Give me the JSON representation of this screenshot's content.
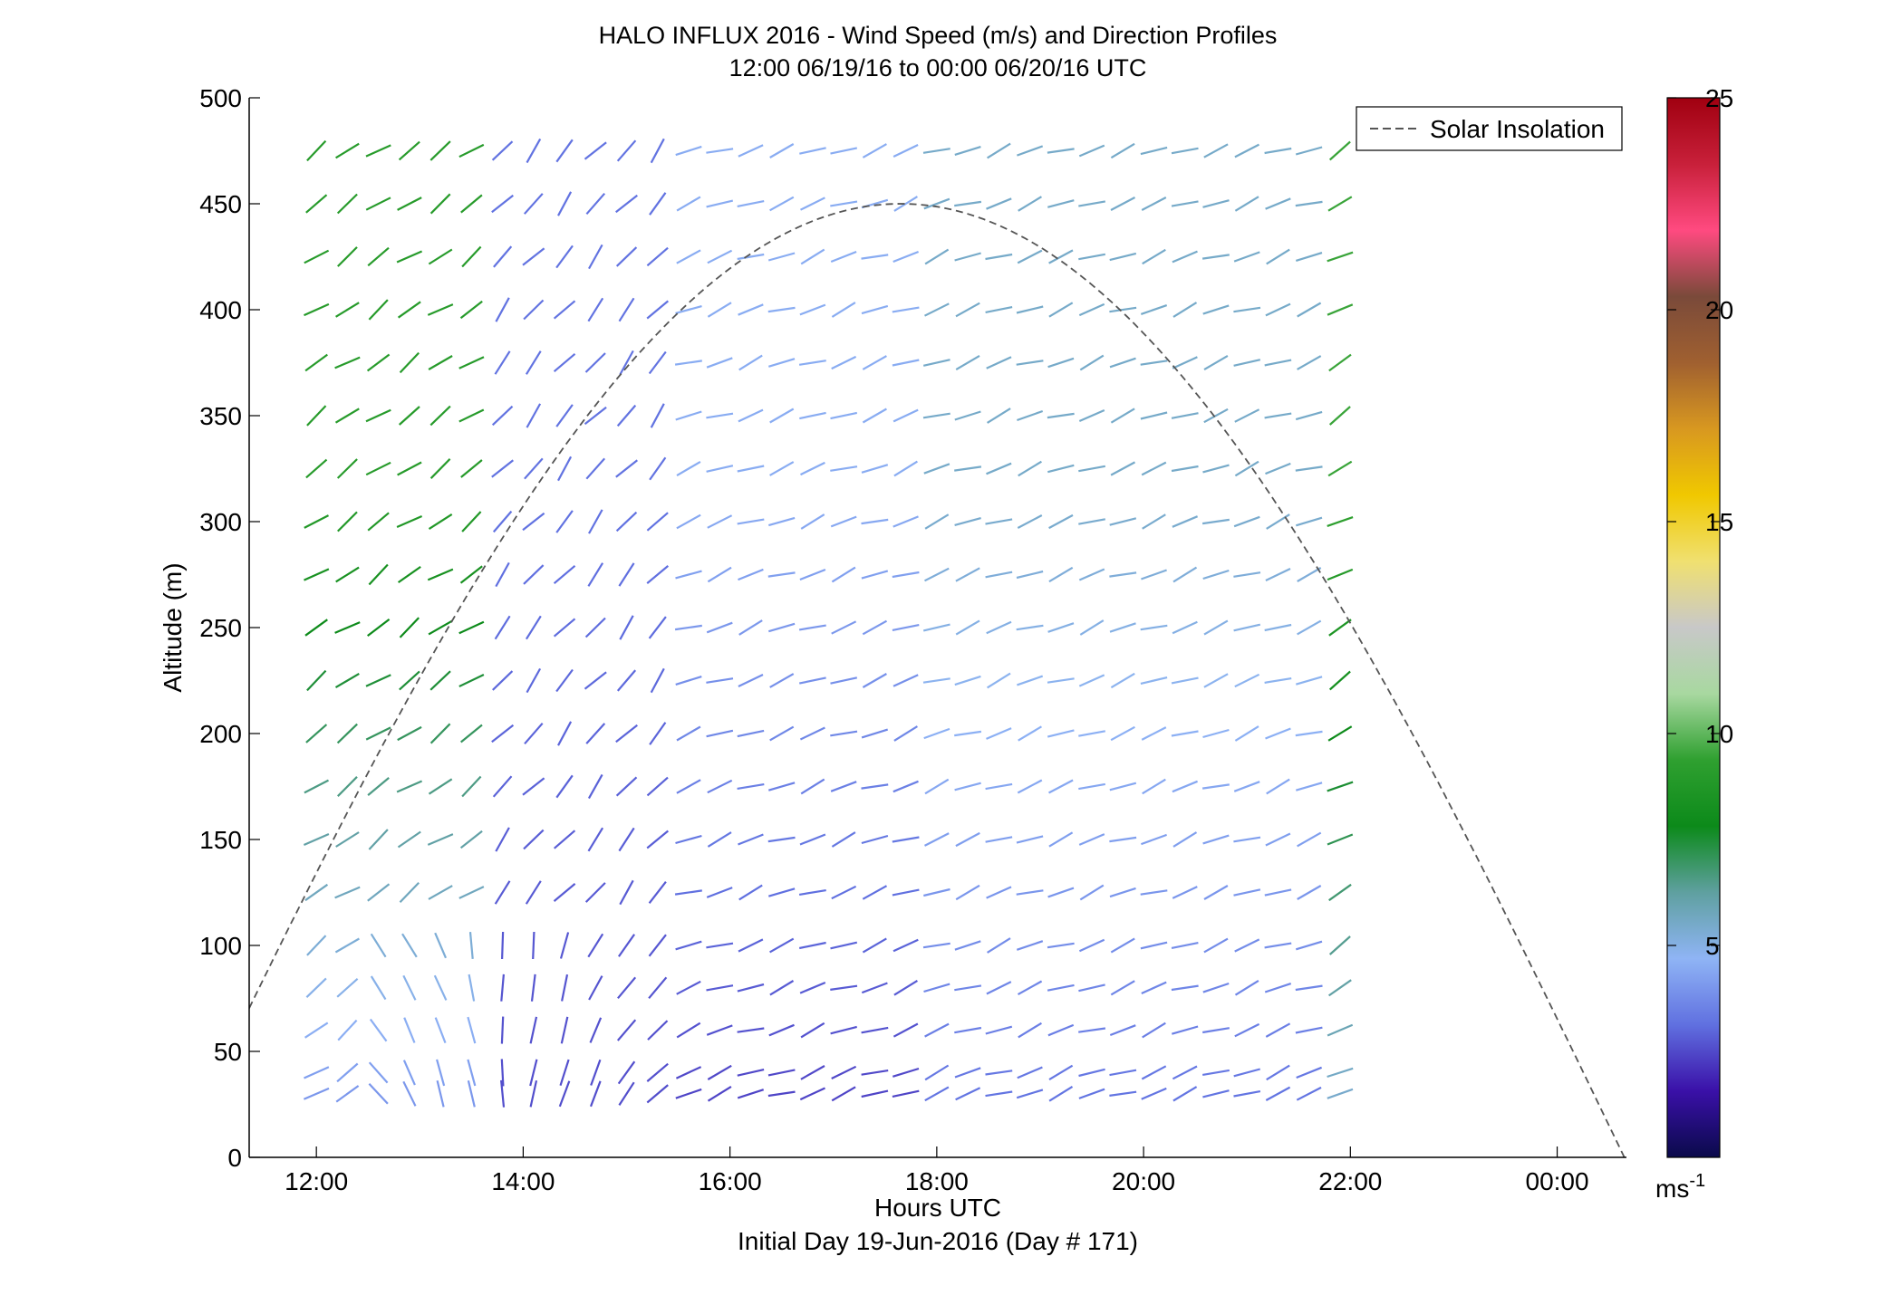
{
  "chart_data": {
    "type": "wind_barb_profile",
    "title": "HALO INFLUX 2016 - Wind Speed (m/s) and Direction Profiles",
    "subtitle": "12:00 06/19/16 to 00:00 06/20/16  UTC",
    "xlabel": "Hours UTC",
    "ylabel": "Altitude (m)",
    "footer": "Initial Day 19-Jun-2016 (Day # 171)",
    "x_ticks": [
      "12:00",
      "14:00",
      "16:00",
      "18:00",
      "20:00",
      "22:00",
      "00:00"
    ],
    "x_tick_hours": [
      12,
      14,
      16,
      18,
      20,
      22,
      24
    ],
    "xlim_hours": [
      11.35,
      24.67
    ],
    "y_ticks": [
      "0",
      "50",
      "100",
      "150",
      "200",
      "250",
      "300",
      "350",
      "400",
      "450",
      "500"
    ],
    "y_tick_values": [
      0,
      50,
      100,
      150,
      200,
      250,
      300,
      350,
      400,
      450,
      500
    ],
    "ylim": [
      0,
      500
    ],
    "legend": {
      "label": "Solar Insolation",
      "placement": "top-right",
      "line_color": "#555555"
    },
    "solar_insolation": {
      "style": "dashed",
      "peak_hour": 17.65,
      "peak_altitude": 450,
      "half_width_hours": 7.0
    },
    "colorbar": {
      "ticks": [
        "5",
        "10",
        "15",
        "20",
        "25"
      ],
      "tick_values": [
        5,
        10,
        15,
        20,
        25
      ],
      "range": [
        0,
        25
      ],
      "unit_label": "ms",
      "unit_exponent": "-1",
      "colors": [
        "#0a0a4a",
        "#3a10a8",
        "#6070e0",
        "#8fb4f5",
        "#5fa0a0",
        "#0c8a1a",
        "#2fa030",
        "#a8d8a0",
        "#c8c8c8",
        "#f0e070",
        "#f0c800",
        "#d89820",
        "#a06030",
        "#7a4a3a",
        "#ff4a80",
        "#c8203a",
        "#a00010"
      ]
    },
    "barb_grid": {
      "start_hour": 12.0,
      "step_hours": 0.3,
      "count": 34,
      "altitudes": [
        30,
        40,
        60,
        80,
        100,
        125,
        150,
        175,
        200,
        225,
        250,
        275,
        300,
        325,
        350,
        375,
        400,
        425,
        450,
        475
      ]
    },
    "wind_regimes": [
      {
        "from_hour": 11.9,
        "to_hour": 13.6,
        "speed_ms": 9.5,
        "upper_speed_ms": 9.0,
        "lower_speed_ms": 3.5,
        "dir_from_deg": 235
      },
      {
        "from_hour": 13.6,
        "to_hour": 15.6,
        "speed_ms": 3.0,
        "upper_speed_ms": 3.2,
        "lower_speed_ms": 2.5,
        "dir_from_deg": 220
      },
      {
        "from_hour": 15.6,
        "to_hour": 18.0,
        "speed_ms": 3.5,
        "upper_speed_ms": 4.5,
        "lower_speed_ms": 2.2,
        "dir_from_deg": 250
      },
      {
        "from_hour": 18.0,
        "to_hour": 21.7,
        "speed_ms": 4.8,
        "upper_speed_ms": 5.5,
        "lower_speed_ms": 3.0,
        "dir_from_deg": 250
      },
      {
        "from_hour": 21.7,
        "to_hour": 24.0,
        "speed_ms": 7.5,
        "upper_speed_ms": 9.5,
        "lower_speed_ms": 5.0,
        "dir_from_deg": 240
      }
    ]
  }
}
